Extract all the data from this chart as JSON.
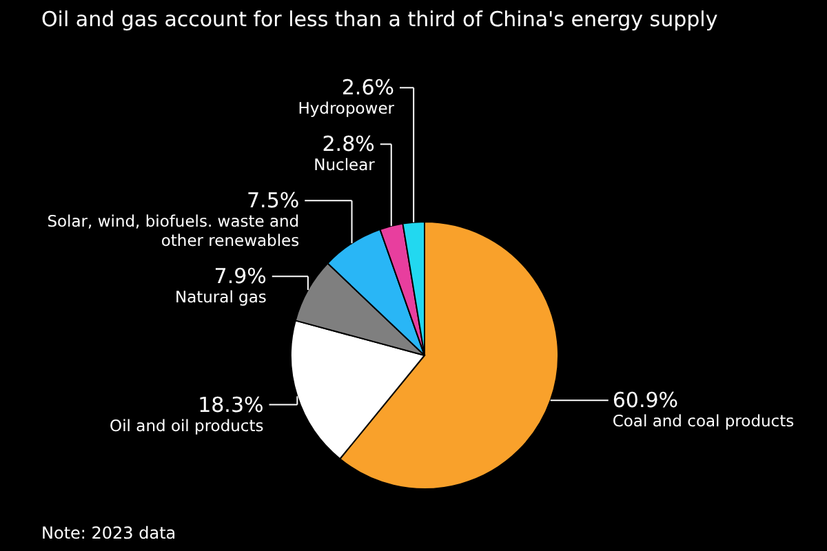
{
  "chart_data": {
    "type": "pie",
    "title": "Oil and gas account for less than a third of China's energy supply",
    "categories": [
      "Coal and coal products",
      "Oil and oil products",
      "Natural gas",
      "Solar, wind, biofuels. waste and other renewables",
      "Nuclear",
      "Hydropower"
    ],
    "values": [
      60.9,
      18.3,
      7.9,
      7.5,
      2.8,
      2.6
    ],
    "colors": [
      "#f9a12b",
      "#ffffff",
      "#7f7f7f",
      "#29b6f6",
      "#e83e9e",
      "#22d8f0"
    ],
    "value_labels": [
      "60.9%",
      "18.3%",
      "7.9%",
      "7.5%",
      "2.8%",
      "2.6%"
    ],
    "annotations": [
      "Note: 2023 data"
    ]
  }
}
